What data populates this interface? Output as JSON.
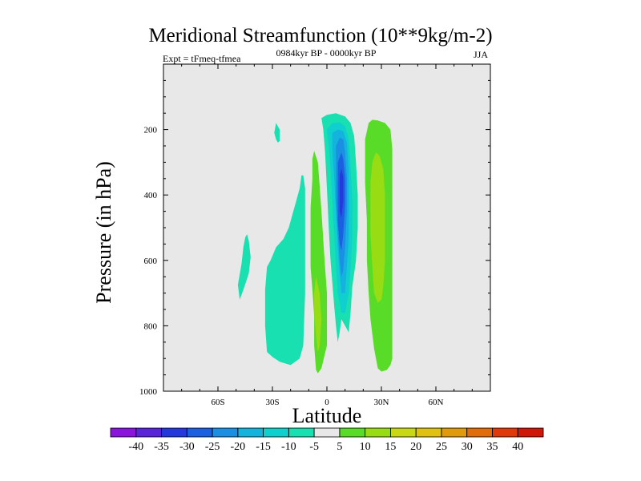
{
  "chart_data": {
    "type": "contour",
    "title": "Meridional Streamfunction (10**9kg/m-2)",
    "subtitle_left": "Expt = tFmeq-tfmea",
    "subtitle_center": "0984kyr BP - 0000kyr BP",
    "subtitle_right": "JJA",
    "xlabel": "Latitude",
    "ylabel": "Pressure (in hPa)",
    "xlim": [
      -90,
      90
    ],
    "ylim": [
      1000,
      0
    ],
    "x_ticks": [
      {
        "value": -60,
        "label": "60S"
      },
      {
        "value": -30,
        "label": "30S"
      },
      {
        "value": 0,
        "label": "0"
      },
      {
        "value": 30,
        "label": "30N"
      },
      {
        "value": 60,
        "label": "60N"
      }
    ],
    "y_ticks": [
      {
        "value": 200,
        "label": "200"
      },
      {
        "value": 400,
        "label": "400"
      },
      {
        "value": 600,
        "label": "600"
      },
      {
        "value": 800,
        "label": "800"
      },
      {
        "value": 1000,
        "label": "1000"
      }
    ],
    "plot_background": "#e8e8e8",
    "colorbar": {
      "labels": [
        "-40",
        "-35",
        "-30",
        "-25",
        "-20",
        "-15",
        "-10",
        "-5",
        "5",
        "10",
        "15",
        "20",
        "25",
        "30",
        "35",
        "40"
      ],
      "colors": [
        "#8a14dc",
        "#5a24d8",
        "#2538dc",
        "#1b60e0",
        "#1b90e3",
        "#14b3de",
        "#10cfcf",
        "#18e0b0",
        "#e8e8e8",
        "#58dc28",
        "#98dc14",
        "#c8d814",
        "#e0c010",
        "#e09a0c",
        "#e06c0a",
        "#e03a0a",
        "#d01808"
      ]
    },
    "regions": [
      {
        "level": "-5",
        "color": "#18e0b0",
        "points": [
          [
            -49,
            675
          ],
          [
            -47,
            610
          ],
          [
            -46,
            560
          ],
          [
            -45,
            530
          ],
          [
            -44,
            520
          ],
          [
            -43,
            540
          ],
          [
            -42,
            590
          ],
          [
            -43,
            640
          ],
          [
            -46,
            690
          ],
          [
            -48,
            720
          ]
        ]
      },
      {
        "level": "-5",
        "color": "#18e0b0",
        "points": [
          [
            -28,
            180
          ],
          [
            -26,
            200
          ],
          [
            -26,
            235
          ],
          [
            -27,
            240
          ],
          [
            -28,
            230
          ],
          [
            -29,
            210
          ]
        ]
      },
      {
        "level": "-5",
        "color": "#18e0b0",
        "points": [
          [
            -33,
            880
          ],
          [
            -34,
            800
          ],
          [
            -34,
            690
          ],
          [
            -33,
            620
          ],
          [
            -31,
            600
          ],
          [
            -28,
            560
          ],
          [
            -24,
            535
          ],
          [
            -21,
            500
          ],
          [
            -19,
            460
          ],
          [
            -17,
            420
          ],
          [
            -15,
            380
          ],
          [
            -14,
            340
          ],
          [
            -13,
            340
          ],
          [
            -12,
            380
          ],
          [
            -12,
            450
          ],
          [
            -12,
            560
          ],
          [
            -12,
            700
          ],
          [
            -13,
            860
          ],
          [
            -15,
            900
          ],
          [
            -20,
            920
          ],
          [
            -26,
            910
          ],
          [
            -30,
            895
          ]
        ]
      },
      {
        "level": "5",
        "color": "#58dc28",
        "points": [
          [
            -7,
            265
          ],
          [
            -5,
            300
          ],
          [
            -4,
            370
          ],
          [
            -3,
            450
          ],
          [
            -2,
            540
          ],
          [
            -1,
            620
          ],
          [
            0,
            700
          ],
          [
            0,
            780
          ],
          [
            0,
            860
          ],
          [
            -3,
            930
          ],
          [
            -5,
            945
          ],
          [
            -6,
            935
          ],
          [
            -7,
            860
          ],
          [
            -7,
            770
          ],
          [
            -8,
            690
          ],
          [
            -9,
            620
          ],
          [
            -9,
            530
          ],
          [
            -9,
            440
          ],
          [
            -8,
            350
          ],
          [
            -8,
            290
          ]
        ]
      },
      {
        "level": "10",
        "color": "#98dc14",
        "points": [
          [
            -6,
            650
          ],
          [
            -4,
            700
          ],
          [
            -3,
            780
          ],
          [
            -4,
            860
          ],
          [
            -5,
            880
          ],
          [
            -6,
            830
          ],
          [
            -7,
            760
          ],
          [
            -7,
            700
          ]
        ]
      },
      {
        "level": "-5",
        "color": "#18e0b0",
        "points": [
          [
            -3,
            165
          ],
          [
            0,
            155
          ],
          [
            5,
            150
          ],
          [
            10,
            160
          ],
          [
            13,
            180
          ],
          [
            15,
            220
          ],
          [
            16,
            300
          ],
          [
            17,
            400
          ],
          [
            17,
            500
          ],
          [
            16,
            600
          ],
          [
            14,
            680
          ],
          [
            13,
            760
          ],
          [
            12,
            820
          ],
          [
            10,
            800
          ],
          [
            8,
            780
          ],
          [
            7,
            820
          ],
          [
            6,
            850
          ],
          [
            5,
            800
          ],
          [
            4,
            740
          ],
          [
            3,
            670
          ],
          [
            2,
            600
          ],
          [
            1,
            500
          ],
          [
            0,
            380
          ],
          [
            -1,
            270
          ],
          [
            -2,
            200
          ]
        ]
      },
      {
        "level": "-10",
        "color": "#10cfcf",
        "points": [
          [
            0,
            200
          ],
          [
            3,
            180
          ],
          [
            7,
            178
          ],
          [
            10,
            190
          ],
          [
            12,
            230
          ],
          [
            13,
            310
          ],
          [
            14,
            420
          ],
          [
            14,
            530
          ],
          [
            13,
            620
          ],
          [
            12,
            700
          ],
          [
            10,
            760
          ],
          [
            8,
            760
          ],
          [
            6,
            700
          ],
          [
            5,
            620
          ],
          [
            4,
            520
          ],
          [
            3,
            420
          ],
          [
            2,
            320
          ],
          [
            1,
            250
          ]
        ]
      },
      {
        "level": "-15",
        "color": "#14b3de",
        "points": [
          [
            3,
            210
          ],
          [
            6,
            200
          ],
          [
            9,
            205
          ],
          [
            11,
            240
          ],
          [
            12,
            320
          ],
          [
            12,
            430
          ],
          [
            12,
            530
          ],
          [
            11,
            620
          ],
          [
            10,
            700
          ],
          [
            8,
            700
          ],
          [
            7,
            640
          ],
          [
            6,
            560
          ],
          [
            5,
            450
          ],
          [
            4,
            350
          ],
          [
            3,
            270
          ]
        ]
      },
      {
        "level": "-20",
        "color": "#1b90e3",
        "points": [
          [
            5,
            250
          ],
          [
            7,
            225
          ],
          [
            9,
            230
          ],
          [
            10,
            270
          ],
          [
            11,
            350
          ],
          [
            11,
            450
          ],
          [
            10,
            560
          ],
          [
            9,
            630
          ],
          [
            8,
            650
          ],
          [
            7,
            600
          ],
          [
            6,
            520
          ],
          [
            5,
            420
          ],
          [
            5,
            330
          ]
        ]
      },
      {
        "level": "-25",
        "color": "#1b60e0",
        "points": [
          [
            6,
            300
          ],
          [
            8,
            270
          ],
          [
            9,
            290
          ],
          [
            10,
            350
          ],
          [
            10,
            430
          ],
          [
            9,
            520
          ],
          [
            8,
            570
          ],
          [
            7,
            550
          ],
          [
            6,
            480
          ],
          [
            6,
            390
          ]
        ]
      },
      {
        "level": "-30",
        "color": "#2538dc",
        "points": [
          [
            7,
            340
          ],
          [
            8,
            320
          ],
          [
            9,
            345
          ],
          [
            9,
            420
          ],
          [
            8,
            470
          ],
          [
            7,
            450
          ],
          [
            7,
            390
          ]
        ]
      },
      {
        "level": "5",
        "color": "#58dc28",
        "points": [
          [
            21,
            230
          ],
          [
            23,
            180
          ],
          [
            25,
            170
          ],
          [
            28,
            172
          ],
          [
            32,
            180
          ],
          [
            35,
            200
          ],
          [
            36,
            260
          ],
          [
            36,
            360
          ],
          [
            36,
            480
          ],
          [
            36,
            600
          ],
          [
            36,
            700
          ],
          [
            36,
            800
          ],
          [
            36,
            900
          ],
          [
            35,
            920
          ],
          [
            33,
            935
          ],
          [
            30,
            940
          ],
          [
            28,
            930
          ],
          [
            26,
            870
          ],
          [
            24,
            780
          ],
          [
            23,
            700
          ],
          [
            22,
            600
          ],
          [
            22,
            480
          ],
          [
            21,
            360
          ]
        ]
      },
      {
        "level": "10",
        "color": "#98dc14",
        "points": [
          [
            24,
            360
          ],
          [
            25,
            300
          ],
          [
            27,
            270
          ],
          [
            29,
            280
          ],
          [
            31,
            320
          ],
          [
            32,
            400
          ],
          [
            32,
            500
          ],
          [
            32,
            600
          ],
          [
            31,
            680
          ],
          [
            30,
            720
          ],
          [
            28,
            730
          ],
          [
            26,
            700
          ],
          [
            25,
            620
          ],
          [
            24,
            520
          ],
          [
            24,
            440
          ]
        ]
      }
    ]
  }
}
